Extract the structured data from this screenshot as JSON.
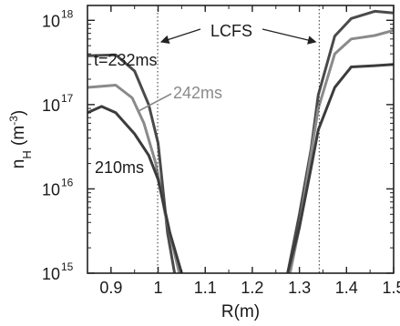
{
  "chart_data": {
    "type": "line",
    "title": "",
    "xlabel": "R(m)",
    "ylabel": {
      "main": "n",
      "sub": "H",
      "unit_pre": " (m",
      "unit_sup": "-3",
      "unit_post": ")"
    },
    "xlim": [
      0.85,
      1.5
    ],
    "ylim": [
      1000000000000000.0,
      1.5e+18
    ],
    "yscale": "log",
    "grid": false,
    "legend": "none",
    "x_ticks": [
      0.9,
      1.0,
      1.1,
      1.2,
      1.3,
      1.4,
      1.5
    ],
    "x_tick_labels": [
      "0.9",
      "1",
      "1.1",
      "1.2",
      "1.3",
      "1.4",
      "1.5"
    ],
    "y_ticks": [
      {
        "value": 1000000000000000.0,
        "base": "10",
        "exp": "15"
      },
      {
        "value": 1e+16,
        "base": "10",
        "exp": "16"
      },
      {
        "value": 1e+17,
        "base": "10",
        "exp": "17"
      },
      {
        "value": 1e+18,
        "base": "10",
        "exp": "18"
      }
    ],
    "lcfs_lines": [
      0.999,
      1.342
    ],
    "annotations": {
      "lcfs": "LCFS",
      "t232": "t=232ms",
      "t242": "242ms",
      "t210": "210ms"
    },
    "series": [
      {
        "name": "t=232ms",
        "color": "#4a4a4a",
        "points": [
          [
            0.85,
            3.8e+17
          ],
          [
            0.91,
            3.9e+17
          ],
          [
            0.95,
            2.5e+17
          ],
          [
            0.98,
            1e+17
          ],
          [
            1.0,
            3.5e+16
          ],
          [
            1.02,
            3000000000000000.0
          ],
          [
            1.035,
            1000000000000000.0
          ]
        ],
        "points_right": [
          [
            1.275,
            1000000000000000.0
          ],
          [
            1.3,
            5000000000000000.0
          ],
          [
            1.325,
            3e+16
          ],
          [
            1.34,
            1.3e+17
          ],
          [
            1.375,
            6.5e+17
          ],
          [
            1.41,
            1.05e+18
          ],
          [
            1.46,
            1.28e+18
          ],
          [
            1.5,
            1.22e+18
          ]
        ]
      },
      {
        "name": "242ms",
        "color": "#8a8a8a",
        "points": [
          [
            0.85,
            1.6e+17
          ],
          [
            0.91,
            1.7e+17
          ],
          [
            0.945,
            1.2e+17
          ],
          [
            0.97,
            6e+16
          ],
          [
            0.995,
            2e+16
          ],
          [
            1.015,
            5000000000000000.0
          ],
          [
            1.045,
            1000000000000000.0
          ]
        ],
        "points_right": [
          [
            1.28,
            1000000000000000.0
          ],
          [
            1.3,
            3500000000000000.0
          ],
          [
            1.32,
            1.8e+16
          ],
          [
            1.34,
            9e+16
          ],
          [
            1.375,
            4e+17
          ],
          [
            1.41,
            6e+17
          ],
          [
            1.46,
            6.6e+17
          ],
          [
            1.5,
            7.6e+17
          ]
        ]
      },
      {
        "name": "210ms",
        "color": "#3c3c3c",
        "points": [
          [
            0.85,
            8e+16
          ],
          [
            0.88,
            9.5e+16
          ],
          [
            0.91,
            8e+16
          ],
          [
            0.95,
            4.5e+16
          ],
          [
            0.98,
            2.5e+16
          ],
          [
            1.0,
            1.3e+16
          ],
          [
            1.025,
            3000000000000000.0
          ],
          [
            1.05,
            1000000000000000.0
          ]
        ],
        "points_right": [
          [
            1.275,
            1000000000000000.0
          ],
          [
            1.3,
            3500000000000000.0
          ],
          [
            1.325,
            1.8e+16
          ],
          [
            1.34,
            5e+16
          ],
          [
            1.375,
            1.6e+17
          ],
          [
            1.41,
            2.8e+17
          ],
          [
            1.46,
            2.9e+17
          ],
          [
            1.5,
            3e+17
          ]
        ]
      }
    ]
  }
}
